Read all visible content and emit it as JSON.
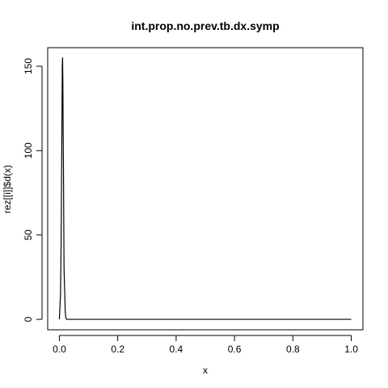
{
  "chart_data": {
    "type": "line",
    "title": "int.prop.no.prev.tb.dx.symp",
    "xlabel": "x",
    "ylabel": "rez[[i]]$d(x)",
    "xlim": [
      -0.04,
      1.04
    ],
    "ylim": [
      -6.2,
      161
    ],
    "x_ticks": [
      0.0,
      0.2,
      0.4,
      0.6,
      0.8,
      1.0
    ],
    "x_tick_labels": [
      "0.0",
      "0.2",
      "0.4",
      "0.6",
      "0.8",
      "1.0"
    ],
    "y_ticks": [
      0,
      50,
      100,
      150
    ],
    "y_tick_labels": [
      "0",
      "50",
      "100",
      "150"
    ],
    "grid": false,
    "legend": "none",
    "series": [
      {
        "color": "#000000",
        "x": [
          0.0,
          0.004,
          0.006,
          0.008,
          0.009,
          0.01,
          0.011,
          0.012,
          0.013,
          0.014,
          0.015,
          0.016,
          0.018,
          0.02,
          0.022,
          0.025,
          0.03,
          0.05,
          0.1,
          0.2,
          0.4,
          0.6,
          0.8,
          1.0
        ],
        "y": [
          0,
          15,
          45,
          95,
          120,
          150,
          155,
          140,
          110,
          90,
          60,
          30,
          18,
          5,
          1,
          0,
          0,
          0,
          0,
          0,
          0,
          0,
          0,
          0
        ]
      }
    ]
  }
}
